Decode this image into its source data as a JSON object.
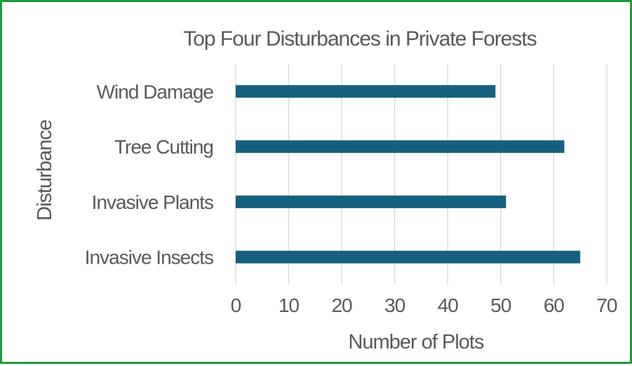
{
  "chart_data": {
    "type": "bar",
    "orientation": "horizontal",
    "title": "Top Four Disturbances in Private Forests",
    "xlabel": "Number of Plots",
    "ylabel": "Disturbance",
    "categories": [
      "Wind Damage",
      "Tree Cutting",
      "Invasive Plants",
      "Invasive Insects"
    ],
    "values": [
      49,
      62,
      51,
      65
    ],
    "xlim": [
      0,
      70
    ],
    "xticks": [
      0,
      10,
      20,
      30,
      40,
      50,
      60,
      70
    ],
    "grid": true,
    "legend": "none",
    "bar_color": "#17607f",
    "frame_color": "#1f9a3c"
  }
}
